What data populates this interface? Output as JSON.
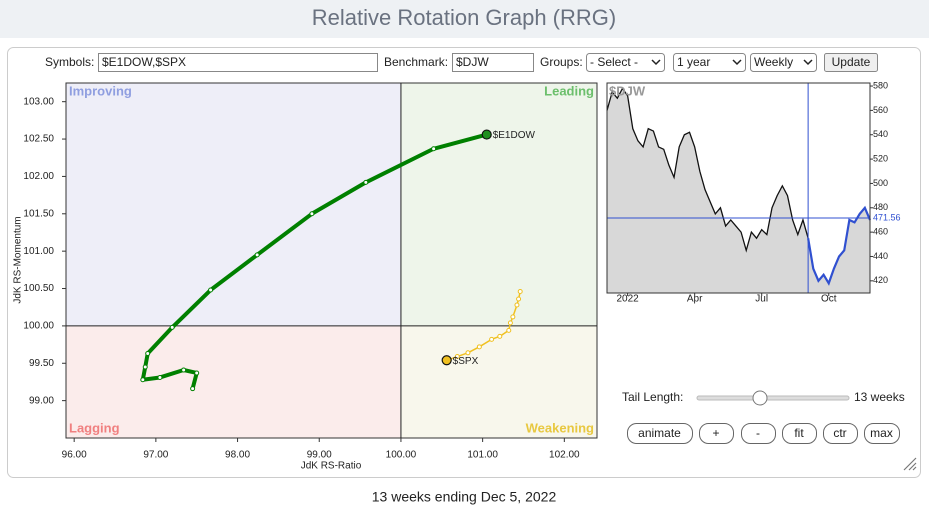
{
  "header": {
    "title": "Relative Rotation Graph (RRG)"
  },
  "toolbar": {
    "symbols_label": "Symbols:",
    "symbols_value": "$E1DOW,$SPX",
    "benchmark_label": "Benchmark:",
    "benchmark_value": "$DJW",
    "groups_label": "Groups:",
    "groups_value": "- Select -",
    "period_value": "1 year",
    "frequency_value": "Weekly",
    "update_button": "Update"
  },
  "chart_data": [
    {
      "type": "rrg",
      "x_label": "JdK RS-Ratio",
      "y_label": "JdK RS-Momentum",
      "xlim": [
        95.9,
        102.4
      ],
      "ylim": [
        98.5,
        103.25
      ],
      "xticks": [
        {
          "value": 96,
          "label": "96.00"
        },
        {
          "value": 97,
          "label": "97.00"
        },
        {
          "value": 98,
          "label": "98.00"
        },
        {
          "value": 99,
          "label": "99.00"
        },
        {
          "value": 100,
          "label": "100.00"
        },
        {
          "value": 101,
          "label": "101.00"
        },
        {
          "value": 102,
          "label": "102.00"
        }
      ],
      "yticks": [
        {
          "value": 99,
          "label": "99.00"
        },
        {
          "value": 99.5,
          "label": "99.50"
        },
        {
          "value": 100,
          "label": "100.00"
        },
        {
          "value": 100.5,
          "label": "100.50"
        },
        {
          "value": 101,
          "label": "101.00"
        },
        {
          "value": 101.5,
          "label": "101.50"
        },
        {
          "value": 102,
          "label": "102.00"
        },
        {
          "value": 102.5,
          "label": "102.50"
        },
        {
          "value": 103,
          "label": "103.00"
        }
      ],
      "quadrants": [
        {
          "name": "Improving",
          "color": "#8f9ee0",
          "background": "#eeeef8"
        },
        {
          "name": "Leading",
          "color": "#6cbf6c",
          "background": "#eef5ea"
        },
        {
          "name": "Lagging",
          "color": "#f08080",
          "background": "#fbeceb"
        },
        {
          "name": "Weakening",
          "color": "#e8c840",
          "background": "#f8f7ec"
        }
      ],
      "series": [
        {
          "name": "$E1DOW",
          "color": "#008000",
          "head_color": "#1f8f1f",
          "x": [
            97.45,
            97.5,
            97.34,
            97.05,
            96.84,
            96.87,
            96.9,
            97.2,
            97.67,
            98.24,
            98.91,
            99.57,
            100.4,
            101.05
          ],
          "y": [
            99.16,
            99.37,
            99.41,
            99.31,
            99.28,
            99.45,
            99.63,
            99.98,
            100.48,
            100.95,
            101.5,
            101.92,
            102.37,
            102.56
          ]
        },
        {
          "name": "$SPX",
          "color": "#f0c020",
          "head_color": "#f0c020",
          "x": [
            101.46,
            101.44,
            101.42,
            101.37,
            101.34,
            101.32,
            101.21,
            101.11,
            100.96,
            100.82,
            100.69,
            100.56
          ],
          "y": [
            100.46,
            100.36,
            100.28,
            100.12,
            100.04,
            99.94,
            99.86,
            99.82,
            99.72,
            99.64,
            99.59,
            99.54
          ]
        }
      ]
    },
    {
      "type": "line",
      "title": "$DJW",
      "ylim": [
        410,
        582.5
      ],
      "yticks": [
        420,
        440,
        460,
        480,
        500,
        520,
        540,
        560,
        580
      ],
      "xlim": [
        0,
        51
      ],
      "xticks": [
        {
          "value": 4,
          "label": "2022"
        },
        {
          "value": 17,
          "label": "Apr"
        },
        {
          "value": 30,
          "label": "Jul"
        },
        {
          "value": 43,
          "label": "Oct"
        }
      ],
      "color": "#111111",
      "highlight_color": "#3050d0",
      "highlight_start": 39,
      "current": {
        "value": 471.56,
        "label": "471.56"
      },
      "values": [
        560,
        575,
        570,
        578,
        572,
        545,
        535,
        530,
        545,
        543,
        530,
        528,
        515,
        505,
        530,
        540,
        542,
        530,
        510,
        495,
        485,
        475,
        480,
        465,
        470,
        465,
        460,
        445,
        460,
        455,
        462,
        458,
        480,
        490,
        498,
        490,
        470,
        458,
        470,
        455,
        430,
        420,
        425,
        418,
        430,
        440,
        445,
        470,
        468,
        475,
        480,
        470
      ]
    }
  ],
  "controls": {
    "tail_label": "Tail Length:",
    "tail_value": "13 weeks",
    "buttons": [
      "animate",
      "+",
      "-",
      "fit",
      "ctr",
      "max"
    ]
  },
  "footer": {
    "text": "13 weeks ending Dec 5, 2022"
  }
}
